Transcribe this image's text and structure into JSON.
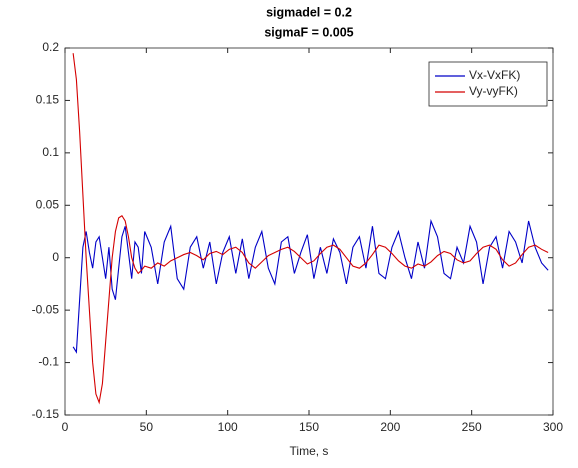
{
  "chart_data": {
    "type": "line",
    "title": "sigmadel = 0.2",
    "subtitle": "sigmaF = 0.005",
    "x_label": "Time, s",
    "x": [
      5,
      7,
      9,
      11,
      13,
      15,
      17,
      19,
      21,
      23,
      25,
      27,
      29,
      31,
      33,
      35,
      37,
      39,
      41,
      43,
      45,
      47,
      49,
      53,
      57,
      61,
      65,
      69,
      73,
      77,
      81,
      85,
      89,
      93,
      97,
      101,
      105,
      109,
      113,
      117,
      121,
      125,
      129,
      133,
      137,
      141,
      145,
      149,
      153,
      157,
      161,
      165,
      169,
      173,
      177,
      181,
      185,
      189,
      193,
      197,
      201,
      205,
      209,
      213,
      217,
      221,
      225,
      229,
      233,
      237,
      241,
      245,
      249,
      253,
      257,
      261,
      265,
      269,
      273,
      277,
      281,
      285,
      289,
      293,
      297
    ],
    "series": [
      {
        "name": "Vx-VxFK)",
        "color": "#0000c8",
        "values": [
          -0.085,
          -0.09,
          -0.04,
          0.01,
          0.025,
          0.005,
          -0.01,
          0.015,
          0.02,
          0.0,
          -0.02,
          0.01,
          -0.03,
          -0.04,
          -0.01,
          0.02,
          0.03,
          0.005,
          -0.02,
          0.015,
          0.01,
          -0.015,
          0.025,
          0.01,
          -0.025,
          0.015,
          0.03,
          -0.02,
          -0.03,
          0.01,
          0.02,
          -0.01,
          0.015,
          -0.025,
          0.005,
          0.02,
          -0.015,
          0.018,
          -0.02,
          0.01,
          0.025,
          -0.01,
          -0.025,
          0.015,
          0.02,
          -0.015,
          0.005,
          0.022,
          -0.02,
          0.01,
          -0.015,
          0.018,
          0.005,
          -0.025,
          0.01,
          0.02,
          -0.01,
          0.03,
          -0.015,
          -0.02,
          0.01,
          0.025,
          0.0,
          -0.02,
          0.015,
          -0.01,
          0.035,
          0.02,
          -0.015,
          -0.02,
          0.01,
          -0.005,
          0.03,
          0.015,
          -0.025,
          0.01,
          0.02,
          -0.01,
          0.025,
          0.015,
          -0.005,
          0.035,
          0.01,
          -0.005,
          -0.012
        ]
      },
      {
        "name": "Vy-vyFK)",
        "color": "#d40000",
        "values": [
          0.195,
          0.17,
          0.12,
          0.06,
          0.0,
          -0.05,
          -0.1,
          -0.13,
          -0.138,
          -0.12,
          -0.08,
          -0.04,
          0.0,
          0.025,
          0.038,
          0.04,
          0.035,
          0.02,
          0.0,
          -0.01,
          -0.015,
          -0.012,
          -0.008,
          -0.01,
          -0.005,
          -0.008,
          -0.003,
          0.0,
          0.003,
          0.005,
          0.002,
          -0.002,
          0.004,
          0.006,
          0.003,
          0.008,
          0.01,
          0.005,
          -0.005,
          -0.01,
          -0.004,
          0.002,
          0.005,
          0.008,
          0.01,
          0.006,
          0.0,
          -0.006,
          -0.003,
          0.004,
          0.01,
          0.012,
          0.008,
          0.0,
          -0.008,
          -0.01,
          -0.005,
          0.003,
          0.012,
          0.01,
          0.004,
          -0.003,
          -0.008,
          -0.01,
          -0.006,
          -0.008,
          -0.004,
          0.002,
          0.006,
          0.004,
          -0.002,
          -0.005,
          -0.003,
          0.004,
          0.01,
          0.012,
          0.008,
          -0.002,
          -0.008,
          -0.005,
          0.003,
          0.01,
          0.012,
          0.008,
          0.005
        ]
      }
    ],
    "xlim": [
      0,
      300
    ],
    "xticks": [
      0,
      50,
      100,
      150,
      200,
      250,
      300
    ],
    "ylim": [
      -0.15,
      0.2
    ],
    "yticks": [
      -0.15,
      -0.1,
      -0.05,
      0,
      0.05,
      0.1,
      0.15,
      0.2
    ],
    "grid": false,
    "legend": "top-right"
  }
}
